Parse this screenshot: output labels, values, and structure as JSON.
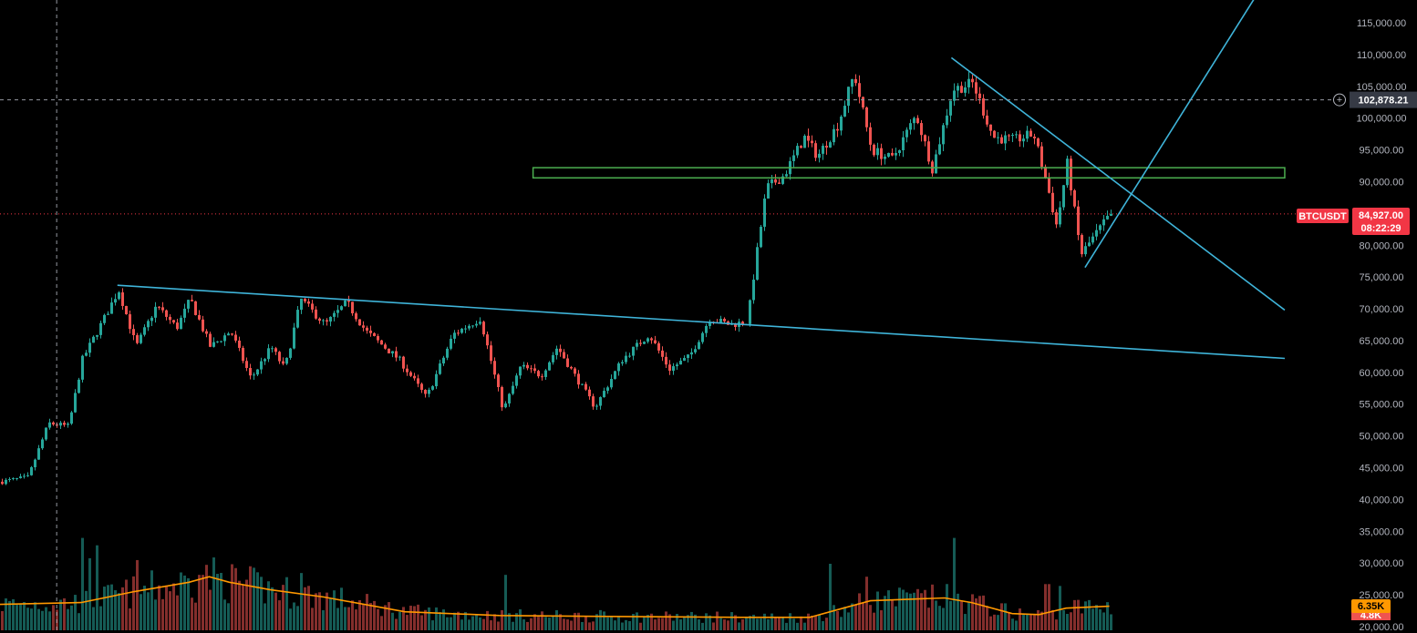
{
  "chart_data": {
    "type": "candlestick",
    "symbol": "BTCUSDT",
    "price_axis": {
      "range": [
        20000,
        117000
      ],
      "ticks": [
        "115,000.00",
        "110,000.00",
        "105,000.00",
        "100,000.00",
        "95,000.00",
        "90,000.00",
        "85,000.00",
        "80,000.00",
        "75,000.00",
        "70,000.00",
        "65,000.00",
        "60,000.00",
        "55,000.00",
        "50,000.00",
        "45,000.00",
        "40,000.00",
        "35,000.00",
        "30,000.00",
        "25,000.00",
        "20,000.00"
      ]
    },
    "close_path": [
      {
        "t": 0.0,
        "p": 42800
      },
      {
        "t": 0.02,
        "p": 43500
      },
      {
        "t": 0.035,
        "p": 52000
      },
      {
        "t": 0.05,
        "p": 51500
      },
      {
        "t": 0.06,
        "p": 62000
      },
      {
        "t": 0.075,
        "p": 68000
      },
      {
        "t": 0.087,
        "p": 73000
      },
      {
        "t": 0.1,
        "p": 64000
      },
      {
        "t": 0.115,
        "p": 70500
      },
      {
        "t": 0.13,
        "p": 67000
      },
      {
        "t": 0.14,
        "p": 71500
      },
      {
        "t": 0.155,
        "p": 64000
      },
      {
        "t": 0.17,
        "p": 66500
      },
      {
        "t": 0.185,
        "p": 59000
      },
      {
        "t": 0.2,
        "p": 64000
      },
      {
        "t": 0.21,
        "p": 60500
      },
      {
        "t": 0.222,
        "p": 71500
      },
      {
        "t": 0.24,
        "p": 67500
      },
      {
        "t": 0.256,
        "p": 71000
      },
      {
        "t": 0.27,
        "p": 66500
      },
      {
        "t": 0.295,
        "p": 62000
      },
      {
        "t": 0.315,
        "p": 56000
      },
      {
        "t": 0.335,
        "p": 66000
      },
      {
        "t": 0.355,
        "p": 68500
      },
      {
        "t": 0.372,
        "p": 54000
      },
      {
        "t": 0.385,
        "p": 61000
      },
      {
        "t": 0.4,
        "p": 59500
      },
      {
        "t": 0.412,
        "p": 64000
      },
      {
        "t": 0.425,
        "p": 59500
      },
      {
        "t": 0.44,
        "p": 54500
      },
      {
        "t": 0.46,
        "p": 62000
      },
      {
        "t": 0.48,
        "p": 66000
      },
      {
        "t": 0.495,
        "p": 60500
      },
      {
        "t": 0.51,
        "p": 62500
      },
      {
        "t": 0.525,
        "p": 68500
      },
      {
        "t": 0.54,
        "p": 67500
      },
      {
        "t": 0.553,
        "p": 68000
      },
      {
        "t": 0.558,
        "p": 76000
      },
      {
        "t": 0.567,
        "p": 89000
      },
      {
        "t": 0.58,
        "p": 91000
      },
      {
        "t": 0.595,
        "p": 97000
      },
      {
        "t": 0.605,
        "p": 94000
      },
      {
        "t": 0.62,
        "p": 99000
      },
      {
        "t": 0.632,
        "p": 107000
      },
      {
        "t": 0.645,
        "p": 95000
      },
      {
        "t": 0.66,
        "p": 93500
      },
      {
        "t": 0.678,
        "p": 100500
      },
      {
        "t": 0.69,
        "p": 92000
      },
      {
        "t": 0.705,
        "p": 104500
      },
      {
        "t": 0.72,
        "p": 105500
      },
      {
        "t": 0.735,
        "p": 97000
      },
      {
        "t": 0.75,
        "p": 96500
      },
      {
        "t": 0.765,
        "p": 97500
      },
      {
        "t": 0.775,
        "p": 89500
      },
      {
        "t": 0.782,
        "p": 83000
      },
      {
        "t": 0.79,
        "p": 93000
      },
      {
        "t": 0.8,
        "p": 78500
      },
      {
        "t": 0.81,
        "p": 81500
      },
      {
        "t": 0.822,
        "p": 84927
      }
    ],
    "volume": {
      "last": "6.35K",
      "other_label": "4.8K",
      "ma_path": [
        {
          "t": 0.0,
          "v": 0.28
        },
        {
          "t": 0.06,
          "v": 0.3
        },
        {
          "t": 0.1,
          "v": 0.42
        },
        {
          "t": 0.14,
          "v": 0.52
        },
        {
          "t": 0.155,
          "v": 0.58
        },
        {
          "t": 0.17,
          "v": 0.52
        },
        {
          "t": 0.2,
          "v": 0.44
        },
        {
          "t": 0.24,
          "v": 0.36
        },
        {
          "t": 0.3,
          "v": 0.2
        },
        {
          "t": 0.37,
          "v": 0.16
        },
        {
          "t": 0.45,
          "v": 0.15
        },
        {
          "t": 0.55,
          "v": 0.14
        },
        {
          "t": 0.6,
          "v": 0.14
        },
        {
          "t": 0.62,
          "v": 0.22
        },
        {
          "t": 0.645,
          "v": 0.32
        },
        {
          "t": 0.7,
          "v": 0.35
        },
        {
          "t": 0.72,
          "v": 0.3
        },
        {
          "t": 0.75,
          "v": 0.18
        },
        {
          "t": 0.77,
          "v": 0.17
        },
        {
          "t": 0.79,
          "v": 0.24
        },
        {
          "t": 0.822,
          "v": 0.26
        }
      ],
      "spikes": [
        {
          "t": 0.059,
          "v": 1.0
        },
        {
          "t": 0.066,
          "v": 0.78
        },
        {
          "t": 0.07,
          "v": 0.92
        },
        {
          "t": 0.1,
          "v": 0.76
        },
        {
          "t": 0.148,
          "v": 0.6
        },
        {
          "t": 0.223,
          "v": 0.62
        },
        {
          "t": 0.373,
          "v": 0.6
        },
        {
          "t": 0.614,
          "v": 0.72
        },
        {
          "t": 0.642,
          "v": 0.58
        },
        {
          "t": 0.705,
          "v": 1.0
        },
        {
          "t": 0.775,
          "v": 0.5
        },
        {
          "t": 0.785,
          "v": 0.48
        }
      ]
    },
    "crosshair": {
      "price": 102878.21,
      "label": "102,878.21",
      "t": 0.042
    },
    "last_price": {
      "label": "84,927.00",
      "countdown": "08:22:29",
      "value": 84927
    },
    "drawings": {
      "support_zone": {
        "t_start": 0.395,
        "t_end": 0.952,
        "price_top": 92200,
        "price_bottom": 90600
      },
      "descending_line": {
        "t_start": 0.087,
        "price_start": 73700,
        "t_end": 0.952,
        "price_end": 62200
      },
      "upper_trend_line": {
        "t_start": 0.705,
        "price_start": 109500,
        "t_end": 0.952,
        "price_end": 69800
      },
      "rising_line": {
        "t_start": 0.804,
        "price_start": 76500,
        "t_end": 0.933,
        "price_end": 120000
      }
    },
    "colors": {
      "up": "#26a69a",
      "down": "#ef5350",
      "trend": "#3fb4d9",
      "zone": "#4caf50",
      "ma": "#ff9800",
      "last_price": "#f23645",
      "axis_text": "#b2b5be"
    }
  }
}
